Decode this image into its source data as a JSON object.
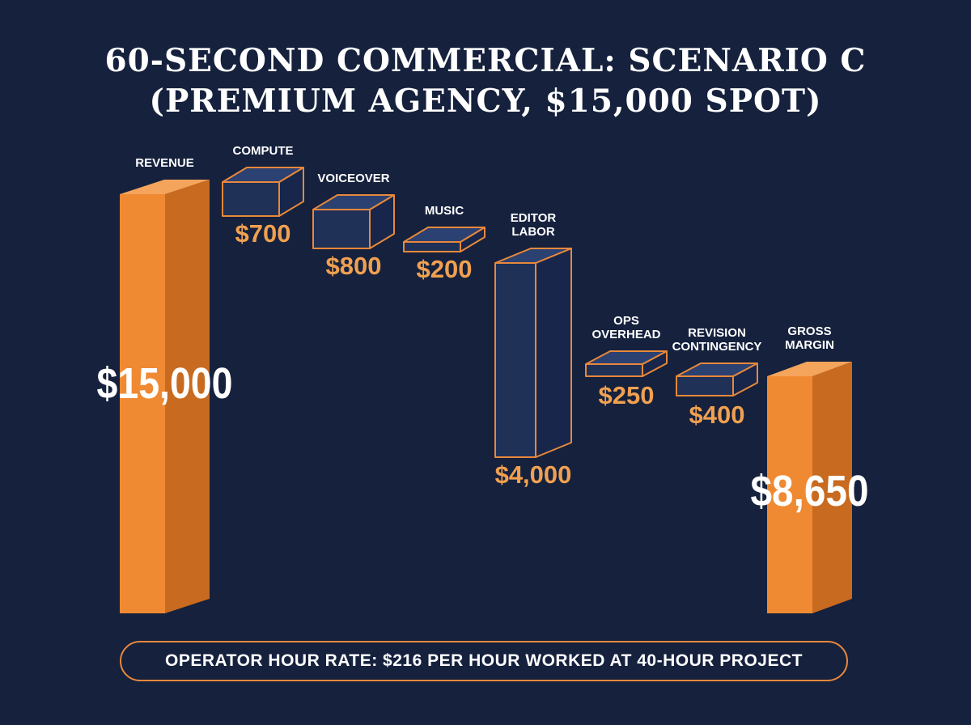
{
  "title_lines": [
    "60-SECOND COMMERCIAL: SCENARIO C",
    "(PREMIUM AGENCY, $15,000 SPOT)"
  ],
  "colors": {
    "background": "#15213d",
    "total_front": "#ef8a33",
    "total_side": "#c86a1f",
    "total_top": "#f5a45b",
    "cost_front": "#1f3157",
    "cost_side": "#17264a",
    "cost_top": "#2b4172",
    "cost_outline": "#e8883a",
    "cost_value_text": "#f0a050",
    "label_text": "#ffffff"
  },
  "chart_data": {
    "type": "bar",
    "subtype": "waterfall",
    "style": "3d",
    "categories": [
      [
        "REVENUE"
      ],
      [
        "COMPUTE"
      ],
      [
        "VOICEOVER"
      ],
      [
        "MUSIC"
      ],
      [
        "EDITOR",
        "LABOR"
      ],
      [
        "OPS",
        "OVERHEAD"
      ],
      [
        "REVISION",
        "CONTINGENCY"
      ],
      [
        "GROSS",
        "MARGIN"
      ]
    ],
    "values": [
      15000,
      -700,
      -800,
      -200,
      -4000,
      -250,
      -400,
      8650
    ],
    "kinds": [
      "total",
      "cost",
      "cost",
      "cost",
      "cost",
      "cost",
      "cost",
      "total"
    ],
    "value_labels": [
      "$15,000",
      "$700",
      "$800",
      "$200",
      "$4,000",
      "$250",
      "$400",
      "$8,650"
    ],
    "ylim": [
      0,
      15000
    ]
  },
  "footer": {
    "text": "OPERATOR HOUR RATE: $216 PER HOUR WORKED AT 40-HOUR PROJECT"
  }
}
